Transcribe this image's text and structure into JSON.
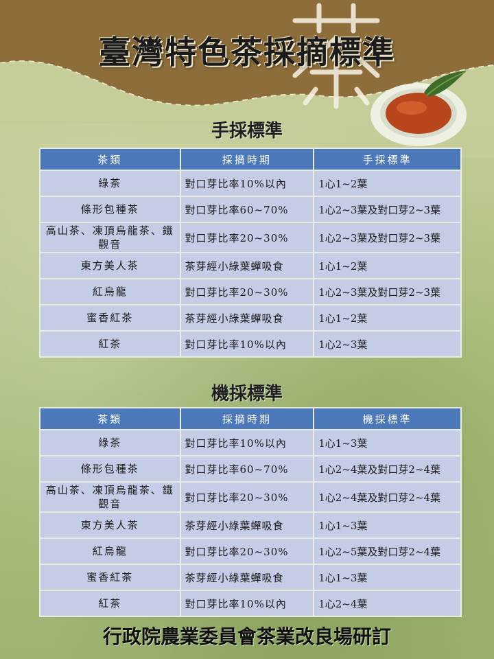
{
  "title": "臺灣特色茶採摘標準",
  "colors": {
    "band": "#8d6d3a",
    "header": "#4a78b8",
    "row": "#c5cde6",
    "tea": "#b8461d"
  },
  "hand_section": {
    "title": "手採標準",
    "headers": [
      "茶類",
      "採摘時期",
      "手採標準"
    ],
    "rows": [
      [
        "綠茶",
        "對口芽比率10%以內",
        "1心1~2葉"
      ],
      [
        "條形包種茶",
        "對口芽比率60~70%",
        "1心2~3葉及對口芽2~3葉"
      ],
      [
        "高山茶、凍頂烏龍茶、鐵觀音",
        "對口芽比率20~30%",
        "1心2~3葉及對口芽2~3葉"
      ],
      [
        "東方美人茶",
        "茶芽經小綠葉蟬吸食",
        "1心1~2葉"
      ],
      [
        "紅烏龍",
        "對口芽比率20~30%",
        "1心2~3葉及對口芽2~3葉"
      ],
      [
        "蜜香紅茶",
        "茶芽經小綠葉蟬吸食",
        "1心1~2葉"
      ],
      [
        "紅茶",
        "對口芽比率10%以內",
        "1心2~3葉"
      ]
    ]
  },
  "machine_section": {
    "title": "機採標準",
    "headers": [
      "茶類",
      "採摘時期",
      "機採標準"
    ],
    "rows": [
      [
        "綠茶",
        "對口芽比率10%以內",
        "1心1~3葉"
      ],
      [
        "條形包種茶",
        "對口芽比率60~70%",
        "1心2~4葉及對口芽2~4葉"
      ],
      [
        "高山茶、凍頂烏龍茶、鐵觀音",
        "對口芽比率20~30%",
        "1心2~4葉及對口芽2~4葉"
      ],
      [
        "東方美人茶",
        "茶芽經小綠葉蟬吸食",
        "1心1~3葉"
      ],
      [
        "紅烏龍",
        "對口芽比率20~30%",
        "1心2~5葉及對口芽2~4葉"
      ],
      [
        "蜜香紅茶",
        "茶芽經小綠葉蟬吸食",
        "1心1~3葉"
      ],
      [
        "紅茶",
        "對口芽比率10%以內",
        "1心2~4葉"
      ]
    ]
  },
  "footer": "行政院農業委員會茶業改良場研訂"
}
